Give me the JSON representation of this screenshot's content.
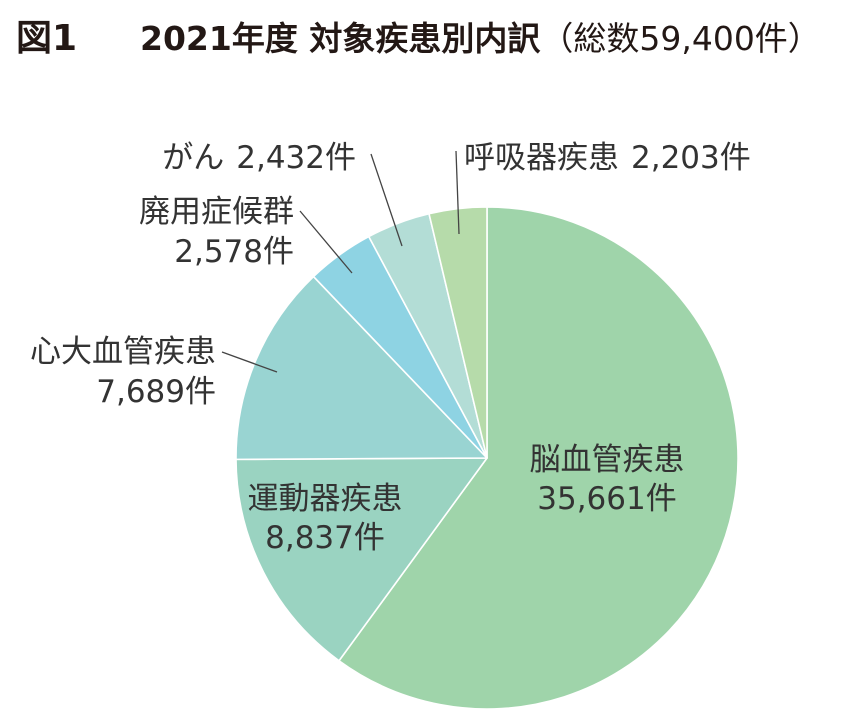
{
  "figure_label": "図1",
  "chart_data": {
    "type": "pie",
    "title": "2021年度 対象疾患別内訳",
    "subtitle": "（総数59,400件）",
    "categories": [
      "脳血管疾患",
      "運動器疾患",
      "心大血管疾患",
      "廃用症候群",
      "がん",
      "呼吸器疾患"
    ],
    "values": [
      35661,
      8837,
      7689,
      2578,
      2432,
      2203
    ],
    "value_labels": [
      "35,661件",
      "8,837件",
      "7,689件",
      "2,578件",
      "2,432件",
      "2,203件"
    ],
    "colors": [
      "#9fd4aa",
      "#9ad3c1",
      "#99d4d2",
      "#8ed3e3",
      "#b3ddd6",
      "#b6dbaa"
    ],
    "slice_border_color": "#ffffff"
  }
}
